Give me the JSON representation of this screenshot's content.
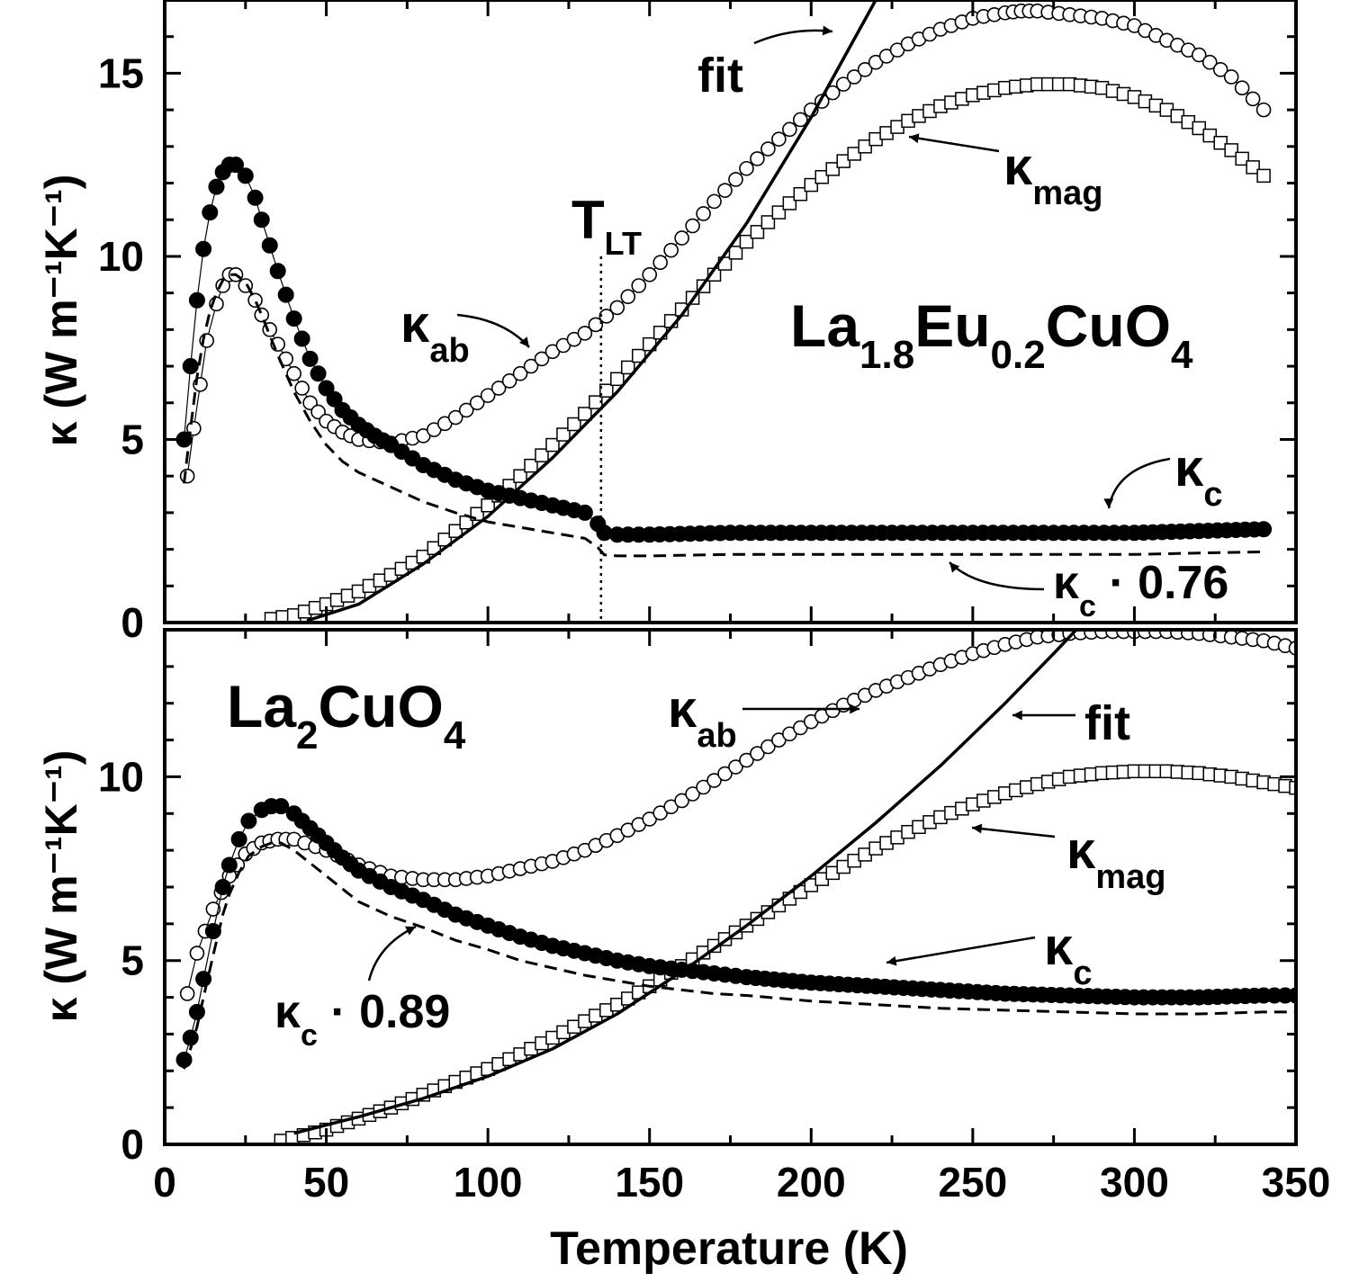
{
  "chart_data": [
    {
      "type": "scatter",
      "panel": "top",
      "title": "",
      "xlabel": "Temperature (K)",
      "ylabel": "κ (W m⁻¹K⁻¹)",
      "xlim": [
        0,
        350
      ],
      "ylim": [
        0,
        17
      ],
      "xticks": [
        0,
        50,
        100,
        150,
        200,
        250,
        300,
        350
      ],
      "yticks": [
        0,
        5,
        10,
        15
      ],
      "compound_label": {
        "main": [
          "La",
          "Eu",
          "CuO"
        ],
        "subs": [
          "1.8",
          "0.2",
          "4"
        ]
      },
      "marker_line": {
        "label": "T",
        "sub": "LT",
        "x": 135
      },
      "annotations": [
        {
          "text": "fit",
          "sub": ""
        },
        {
          "text": "κ",
          "sub": "mag"
        },
        {
          "text": "κ",
          "sub": "ab"
        },
        {
          "text": "κ",
          "sub": "c"
        },
        {
          "text": "κ",
          "sub": "c",
          "suffix": " · 0.76"
        }
      ],
      "series": [
        {
          "name": "κab",
          "marker": "open-circle",
          "x": [
            7,
            9,
            11,
            13,
            16,
            18,
            20,
            22,
            25,
            28,
            30,
            35,
            40,
            45,
            50,
            55,
            60,
            70,
            80,
            90,
            100,
            110,
            120,
            130,
            140,
            150,
            160,
            170,
            180,
            190,
            200,
            210,
            220,
            230,
            240,
            250,
            260,
            265,
            270,
            280,
            290,
            300,
            310,
            320,
            330,
            340
          ],
          "y": [
            4.0,
            5.3,
            6.5,
            7.7,
            8.7,
            9.2,
            9.5,
            9.5,
            9.2,
            8.8,
            8.4,
            7.6,
            6.8,
            6.0,
            5.5,
            5.2,
            5.0,
            4.9,
            5.1,
            5.6,
            6.2,
            6.8,
            7.4,
            7.9,
            8.6,
            9.5,
            10.5,
            11.5,
            12.4,
            13.2,
            14.0,
            14.7,
            15.3,
            15.8,
            16.2,
            16.5,
            16.65,
            16.7,
            16.7,
            16.6,
            16.5,
            16.3,
            15.9,
            15.5,
            14.9,
            14.0
          ]
        },
        {
          "name": "κmag",
          "marker": "open-square",
          "x": [
            33,
            40,
            50,
            60,
            70,
            80,
            90,
            100,
            110,
            120,
            130,
            140,
            150,
            160,
            170,
            180,
            190,
            200,
            210,
            220,
            230,
            240,
            250,
            260,
            270,
            280,
            290,
            300,
            310,
            320,
            330,
            340
          ],
          "y": [
            0.1,
            0.2,
            0.5,
            0.85,
            1.3,
            1.8,
            2.5,
            3.2,
            4.0,
            4.85,
            5.7,
            6.65,
            7.6,
            8.55,
            9.5,
            10.4,
            11.2,
            11.95,
            12.6,
            13.2,
            13.7,
            14.1,
            14.4,
            14.6,
            14.7,
            14.7,
            14.6,
            14.35,
            14.0,
            13.5,
            12.9,
            12.2
          ]
        },
        {
          "name": "κc",
          "marker": "filled-circle",
          "x": [
            6,
            8,
            10,
            12,
            14,
            16,
            18,
            20,
            22,
            25,
            28,
            30,
            35,
            40,
            45,
            50,
            55,
            60,
            65,
            70,
            80,
            90,
            100,
            110,
            120,
            130,
            134,
            136,
            140,
            150,
            175,
            200,
            225,
            250,
            275,
            300,
            320,
            340
          ],
          "y": [
            5.0,
            7.0,
            8.8,
            10.2,
            11.2,
            11.9,
            12.3,
            12.5,
            12.5,
            12.2,
            11.6,
            11.0,
            9.6,
            8.3,
            7.2,
            6.4,
            5.8,
            5.4,
            5.1,
            4.85,
            4.3,
            3.9,
            3.6,
            3.4,
            3.2,
            3.0,
            2.7,
            2.45,
            2.4,
            2.4,
            2.45,
            2.45,
            2.45,
            2.45,
            2.45,
            2.45,
            2.5,
            2.55
          ]
        },
        {
          "name": "κc · 0.76",
          "marker": "dashed-line",
          "x": [
            6,
            8,
            10,
            12,
            14,
            16,
            18,
            20,
            22,
            25,
            28,
            30,
            35,
            40,
            45,
            50,
            55,
            60,
            65,
            70,
            80,
            90,
            100,
            110,
            120,
            130,
            134,
            136,
            140,
            150,
            175,
            200,
            225,
            250,
            275,
            300,
            320,
            340
          ],
          "y": [
            3.8,
            5.3,
            6.7,
            7.75,
            8.5,
            9.0,
            9.35,
            9.5,
            9.5,
            9.3,
            8.8,
            8.4,
            7.3,
            6.3,
            5.5,
            4.85,
            4.4,
            4.1,
            3.9,
            3.7,
            3.3,
            3.0,
            2.75,
            2.6,
            2.45,
            2.3,
            2.05,
            1.85,
            1.82,
            1.82,
            1.86,
            1.86,
            1.86,
            1.86,
            1.86,
            1.86,
            1.9,
            1.93
          ]
        },
        {
          "name": "fit",
          "marker": "solid-line",
          "x": [
            44,
            60,
            80,
            100,
            120,
            140,
            160,
            180,
            200,
            210,
            220
          ],
          "y": [
            0.05,
            0.5,
            1.6,
            2.9,
            4.5,
            6.3,
            8.4,
            10.9,
            13.8,
            15.4,
            17.0
          ]
        }
      ]
    },
    {
      "type": "scatter",
      "panel": "bottom",
      "title": "",
      "xlabel": "Temperature (K)",
      "ylabel": "κ (W m⁻¹K⁻¹)",
      "xlim": [
        0,
        350
      ],
      "ylim": [
        0,
        14
      ],
      "xticks": [
        0,
        50,
        100,
        150,
        200,
        250,
        300,
        350
      ],
      "yticks": [
        0,
        5,
        10
      ],
      "compound_label": {
        "main": [
          "La",
          "CuO"
        ],
        "subs": [
          "2",
          "4"
        ]
      },
      "annotations": [
        {
          "text": "κ",
          "sub": "ab"
        },
        {
          "text": "fit",
          "sub": ""
        },
        {
          "text": "κ",
          "sub": "mag"
        },
        {
          "text": "κ",
          "sub": "c"
        },
        {
          "text": "κ",
          "sub": "c",
          "suffix": " · 0.89"
        }
      ],
      "series": [
        {
          "name": "κab",
          "marker": "open-circle",
          "x": [
            7,
            10,
            15,
            20,
            25,
            30,
            35,
            40,
            50,
            60,
            70,
            80,
            90,
            100,
            110,
            120,
            130,
            140,
            150,
            160,
            170,
            180,
            190,
            200,
            210,
            220,
            230,
            240,
            250,
            260,
            270,
            280,
            290,
            300,
            310,
            320,
            330,
            340,
            350
          ],
          "y": [
            4.1,
            5.2,
            6.4,
            7.3,
            7.9,
            8.2,
            8.3,
            8.3,
            8.0,
            7.6,
            7.3,
            7.2,
            7.2,
            7.3,
            7.5,
            7.7,
            8.0,
            8.4,
            8.85,
            9.35,
            9.9,
            10.45,
            11.0,
            11.5,
            11.95,
            12.35,
            12.7,
            13.05,
            13.35,
            13.6,
            13.8,
            13.9,
            13.95,
            13.95,
            13.95,
            13.9,
            13.8,
            13.7,
            13.5
          ]
        },
        {
          "name": "κmag",
          "marker": "open-square",
          "x": [
            36,
            50,
            60,
            70,
            80,
            90,
            100,
            110,
            120,
            130,
            140,
            150,
            160,
            170,
            180,
            190,
            200,
            210,
            220,
            230,
            240,
            250,
            260,
            270,
            280,
            290,
            300,
            310,
            320,
            330,
            340,
            350
          ],
          "y": [
            0.1,
            0.4,
            0.7,
            1.0,
            1.35,
            1.7,
            2.05,
            2.45,
            2.9,
            3.35,
            3.8,
            4.3,
            4.85,
            5.4,
            5.95,
            6.5,
            7.05,
            7.55,
            8.05,
            8.5,
            8.9,
            9.25,
            9.55,
            9.8,
            10.0,
            10.1,
            10.15,
            10.15,
            10.1,
            10.0,
            9.85,
            9.7
          ]
        },
        {
          "name": "κc",
          "marker": "filled-circle",
          "x": [
            6,
            8,
            10,
            12,
            15,
            18,
            20,
            23,
            26,
            30,
            33,
            36,
            40,
            45,
            50,
            55,
            60,
            70,
            80,
            90,
            100,
            110,
            120,
            130,
            140,
            150,
            160,
            170,
            180,
            200,
            220,
            240,
            260,
            280,
            300,
            320,
            340,
            350
          ],
          "y": [
            2.3,
            2.9,
            3.6,
            4.5,
            5.8,
            7.0,
            7.6,
            8.3,
            8.8,
            9.1,
            9.2,
            9.2,
            9.0,
            8.6,
            8.2,
            7.8,
            7.45,
            7.0,
            6.65,
            6.25,
            5.95,
            5.65,
            5.4,
            5.2,
            5.0,
            4.85,
            4.75,
            4.65,
            4.55,
            4.4,
            4.3,
            4.2,
            4.1,
            4.05,
            4.0,
            4.0,
            4.05,
            4.05
          ]
        },
        {
          "name": "κc · 0.89",
          "marker": "dashed-line",
          "x": [
            6,
            8,
            10,
            12,
            15,
            18,
            20,
            23,
            26,
            30,
            33,
            36,
            40,
            45,
            50,
            55,
            60,
            70,
            80,
            90,
            100,
            110,
            120,
            130,
            140,
            150,
            160,
            170,
            180,
            200,
            220,
            240,
            260,
            280,
            300,
            320,
            340,
            350
          ],
          "y": [
            2.05,
            2.6,
            3.2,
            4.0,
            5.15,
            6.25,
            6.8,
            7.4,
            7.85,
            8.1,
            8.2,
            8.2,
            8.0,
            7.65,
            7.3,
            6.95,
            6.6,
            6.2,
            5.9,
            5.55,
            5.3,
            5.0,
            4.8,
            4.6,
            4.45,
            4.3,
            4.2,
            4.1,
            4.05,
            3.9,
            3.8,
            3.7,
            3.65,
            3.6,
            3.55,
            3.55,
            3.6,
            3.6
          ]
        },
        {
          "name": "fit",
          "marker": "solid-line",
          "x": [
            40,
            60,
            80,
            100,
            120,
            140,
            160,
            180,
            200,
            220,
            240,
            260,
            275,
            282
          ],
          "y": [
            0.3,
            0.75,
            1.25,
            1.85,
            2.6,
            3.55,
            4.7,
            5.95,
            7.3,
            8.75,
            10.3,
            12.0,
            13.35,
            14.0
          ]
        }
      ]
    }
  ]
}
